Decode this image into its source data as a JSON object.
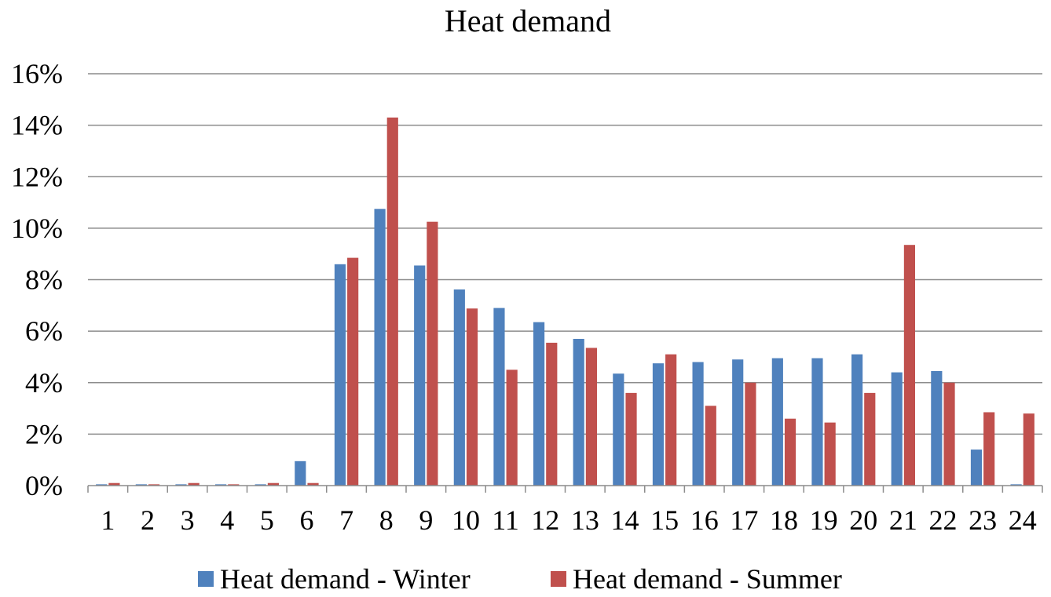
{
  "chart_data": {
    "type": "bar",
    "title": "Heat demand",
    "xlabel": "",
    "ylabel": "",
    "categories": [
      "1",
      "2",
      "3",
      "4",
      "5",
      "6",
      "7",
      "8",
      "9",
      "10",
      "11",
      "12",
      "13",
      "14",
      "15",
      "16",
      "17",
      "18",
      "19",
      "20",
      "21",
      "22",
      "23",
      "24"
    ],
    "ylim": [
      0,
      16
    ],
    "y_ticks": [
      "0%",
      "2%",
      "4%",
      "6%",
      "8%",
      "10%",
      "12%",
      "14%",
      "16%"
    ],
    "y_unit": "%",
    "grid": "horizontal",
    "legend_position": "bottom",
    "series": [
      {
        "name": "Heat demand - Winter",
        "color": "#4F81BD",
        "values": [
          0.05,
          0.05,
          0.05,
          0.05,
          0.05,
          0.95,
          8.6,
          10.75,
          8.55,
          7.62,
          6.9,
          6.35,
          5.7,
          4.35,
          4.75,
          4.8,
          4.9,
          4.95,
          4.95,
          5.1,
          4.4,
          4.45,
          1.4,
          0.05
        ]
      },
      {
        "name": "Heat demand - Summer",
        "color": "#C0504D",
        "values": [
          0.1,
          0.05,
          0.1,
          0.05,
          0.1,
          0.1,
          8.85,
          14.3,
          10.25,
          6.88,
          4.5,
          5.55,
          5.35,
          3.6,
          5.1,
          3.1,
          4.0,
          2.6,
          2.45,
          3.6,
          9.35,
          4.0,
          2.85,
          2.8
        ]
      }
    ]
  }
}
